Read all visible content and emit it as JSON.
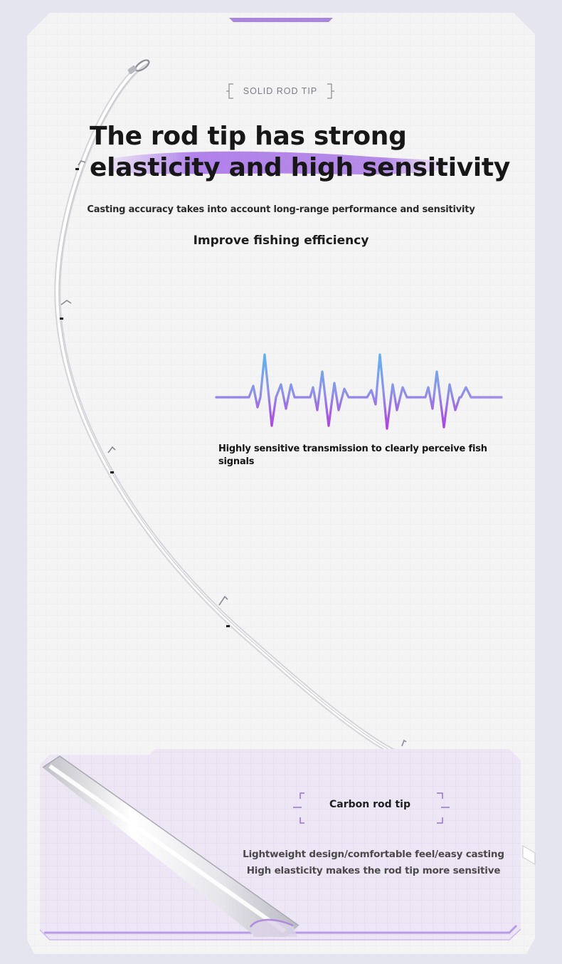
{
  "section_label": "SOLID ROD TIP",
  "headline": {
    "line1": "The rod tip has strong",
    "line2": "elasticity and high sensitivity"
  },
  "subtitle": "Casting accuracy takes into account long-range performance and sensitivity",
  "tagline": "Improve fishing efficiency",
  "feature": {
    "text": "Highly sensitive transmission to clearly perceive fish signals"
  },
  "card": {
    "title": "Carbon rod tip",
    "line1": "Lightweight design/comfortable feel/easy casting",
    "line2": "High elasticity makes the rod tip more sensitive"
  },
  "colors": {
    "background": "#e4e5ee",
    "panel": "#f4f4f5",
    "accent_purple": "#a36be3",
    "wave_blue": "#5db2f0",
    "card_bg": "#ece6f5"
  }
}
